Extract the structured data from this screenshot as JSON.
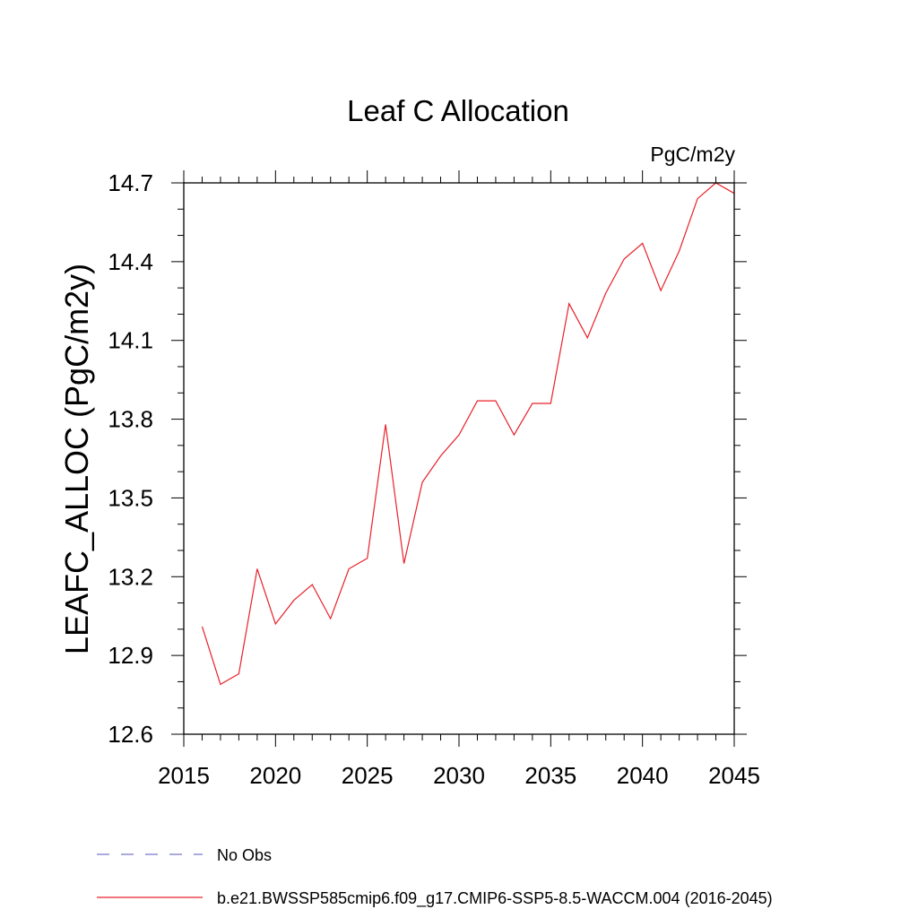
{
  "chart_data": {
    "type": "line",
    "title": "Leaf C Allocation",
    "units": "PgC/m2y",
    "ylabel": "LEAFC_ALLOC  (PgC/m2y)",
    "xlabel": "",
    "xlim": [
      2015,
      2045
    ],
    "ylim": [
      12.6,
      14.7
    ],
    "x_ticks": [
      2015,
      2020,
      2025,
      2030,
      2035,
      2040,
      2045
    ],
    "y_ticks": [
      12.6,
      12.9,
      13.2,
      13.5,
      13.8,
      14.1,
      14.4,
      14.7
    ],
    "x_minor_step": 1,
    "y_minor_step": 0.1,
    "grid": false,
    "legend_position": "bottom-left",
    "legend": [
      {
        "label": "No Obs",
        "style": "dashed",
        "color": "#7777cc"
      },
      {
        "label": "b.e21.BWSSP585cmip6.f09_g17.CMIP6-SSP5-8.5-WACCM.004 (2016-2045)",
        "style": "solid",
        "color": "#e8202a"
      }
    ],
    "series": [
      {
        "color": "#e8202a",
        "x": [
          2016,
          2017,
          2018,
          2019,
          2020,
          2021,
          2022,
          2023,
          2024,
          2025,
          2026,
          2027,
          2028,
          2029,
          2030,
          2031,
          2032,
          2033,
          2034,
          2035,
          2036,
          2037,
          2038,
          2039,
          2040,
          2041,
          2042,
          2043,
          2044,
          2045
        ],
        "y": [
          13.01,
          12.79,
          12.83,
          13.23,
          13.02,
          13.11,
          13.17,
          13.04,
          13.23,
          13.27,
          13.78,
          13.25,
          13.56,
          13.66,
          13.74,
          13.87,
          13.87,
          13.74,
          13.86,
          13.86,
          14.24,
          14.11,
          14.28,
          14.41,
          14.47,
          14.29,
          14.44,
          14.64,
          14.7,
          14.66
        ]
      }
    ]
  }
}
